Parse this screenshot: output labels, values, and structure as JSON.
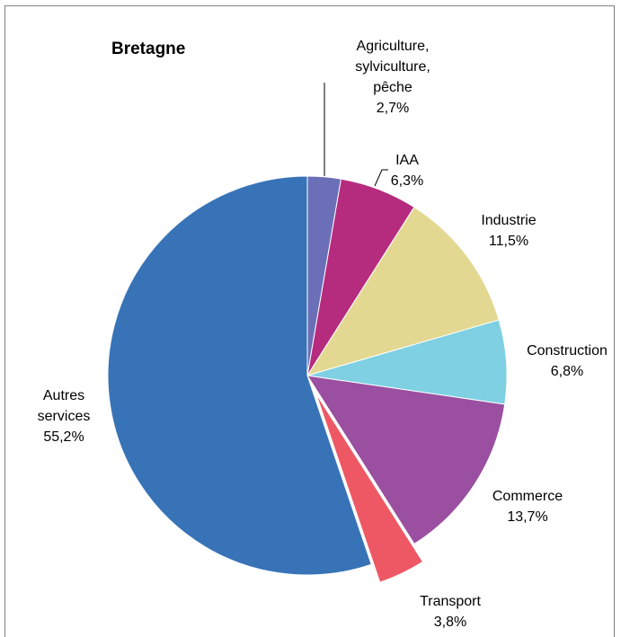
{
  "chart_data": {
    "type": "pie",
    "title": "Bretagne",
    "slices": [
      {
        "label": [
          "Agriculture,",
          "sylviculture,",
          "pêche"
        ],
        "value_label": "2,7%",
        "value": 2.7,
        "color": "#6a6fb8"
      },
      {
        "label": [
          "IAA"
        ],
        "value_label": "6,3%",
        "value": 6.3,
        "color": "#b52b7e"
      },
      {
        "label": [
          "Industrie"
        ],
        "value_label": "11,5%",
        "value": 11.5,
        "color": "#e3d891"
      },
      {
        "label": [
          "Construction"
        ],
        "value_label": "6,8%",
        "value": 6.8,
        "color": "#7ed0e2"
      },
      {
        "label": [
          "Commerce"
        ],
        "value_label": "13,7%",
        "value": 13.7,
        "color": "#9a4fa0"
      },
      {
        "label": [
          "Transport"
        ],
        "value_label": "3,8%",
        "value": 3.8,
        "color": "#ee5864",
        "exploded": true
      },
      {
        "label": [
          "Autres",
          "services"
        ],
        "value_label": "55,2%",
        "value": 55.2,
        "color": "#3873b7"
      }
    ],
    "legend": "none",
    "start_angle": "top (12 o'clock)",
    "direction": "clockwise"
  }
}
